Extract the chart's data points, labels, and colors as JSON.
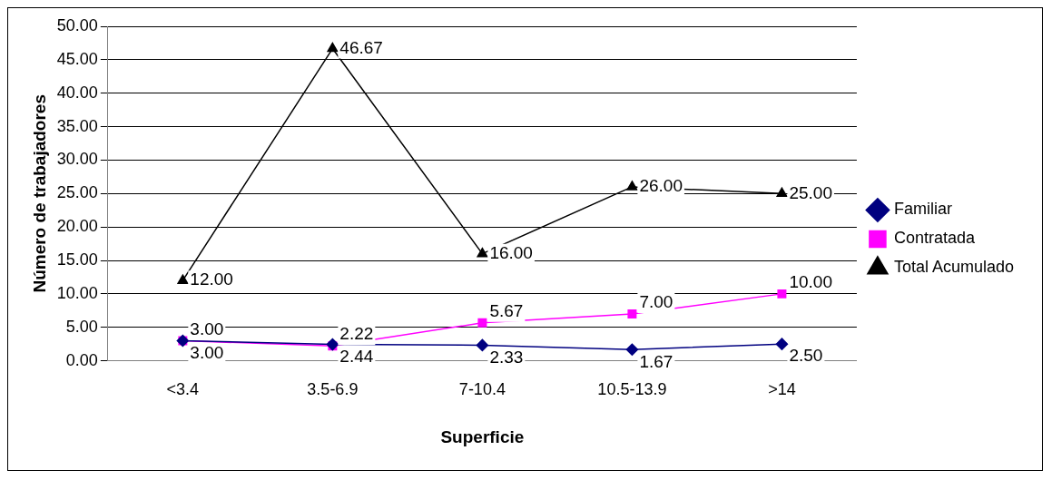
{
  "chart_data": {
    "type": "line",
    "xlabel": "Superficie",
    "ylabel": "Número de trabajadores",
    "categories": [
      "<3.4",
      "3.5-6.9",
      "7-10.4",
      "10.5-13.9",
      ">14"
    ],
    "series": [
      {
        "name": "Familiar",
        "color": "#000080",
        "marker": "diamond",
        "values": [
          3.0,
          2.44,
          2.33,
          1.67,
          2.5
        ],
        "value_labels": [
          "3.00",
          "2.44",
          "2.33",
          "1.67",
          "2.50"
        ]
      },
      {
        "name": "Contratada",
        "color": "#ff00ff",
        "marker": "square",
        "values": [
          3.0,
          2.22,
          5.67,
          7.0,
          10.0
        ],
        "value_labels": [
          "3.00",
          "2.22",
          "5.67",
          "7.00",
          "10.00"
        ]
      },
      {
        "name": "Total Acumulado",
        "color": "#000000",
        "marker": "triangle",
        "values": [
          12.0,
          46.67,
          16.0,
          26.0,
          25.0
        ],
        "value_labels": [
          "12.00",
          "46.67",
          "16.00",
          "26.00",
          "25.00"
        ]
      }
    ],
    "ylim": [
      0,
      50
    ],
    "yticks": [
      {
        "value": 0,
        "label": "0.00"
      },
      {
        "value": 5,
        "label": "5.00"
      },
      {
        "value": 10,
        "label": "10.00"
      },
      {
        "value": 15,
        "label": "15.00"
      },
      {
        "value": 20,
        "label": "20.00"
      },
      {
        "value": 25,
        "label": "25.00"
      },
      {
        "value": 30,
        "label": "30.00"
      },
      {
        "value": 35,
        "label": "35.00"
      },
      {
        "value": 40,
        "label": "40.00"
      },
      {
        "value": 45,
        "label": "45.00"
      },
      {
        "value": 50,
        "label": "50.00"
      }
    ],
    "grid": "y",
    "legend": "right",
    "line_style": "solid"
  }
}
